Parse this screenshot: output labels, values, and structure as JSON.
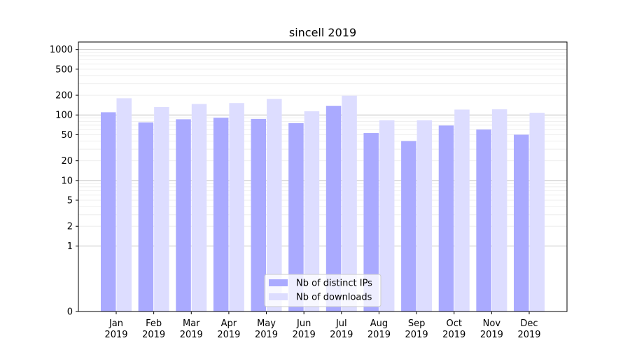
{
  "chart_data": {
    "type": "bar",
    "title": "sincell 2019",
    "xlabel": "",
    "ylabel": "",
    "y_scale": "symlog",
    "ylim": [
      0,
      1300
    ],
    "y_ticks": [
      0,
      1,
      2,
      5,
      10,
      20,
      50,
      100,
      200,
      500,
      1000
    ],
    "grid": true,
    "legend_position": "bottom-center",
    "categories": [
      {
        "month": "Jan",
        "year": "2019"
      },
      {
        "month": "Feb",
        "year": "2019"
      },
      {
        "month": "Mar",
        "year": "2019"
      },
      {
        "month": "Apr",
        "year": "2019"
      },
      {
        "month": "May",
        "year": "2019"
      },
      {
        "month": "Jun",
        "year": "2019"
      },
      {
        "month": "Jul",
        "year": "2019"
      },
      {
        "month": "Aug",
        "year": "2019"
      },
      {
        "month": "Sep",
        "year": "2019"
      },
      {
        "month": "Oct",
        "year": "2019"
      },
      {
        "month": "Nov",
        "year": "2019"
      },
      {
        "month": "Dec",
        "year": "2019"
      }
    ],
    "series": [
      {
        "name": "Nb of distinct IPs",
        "color": "#aaaaff",
        "values": [
          110,
          77,
          86,
          91,
          87,
          75,
          138,
          53,
          40,
          69,
          60,
          50
        ]
      },
      {
        "name": "Nb of downloads",
        "color": "#ddddff",
        "values": [
          180,
          132,
          147,
          152,
          176,
          114,
          197,
          83,
          83,
          121,
          122,
          108
        ]
      }
    ]
  }
}
